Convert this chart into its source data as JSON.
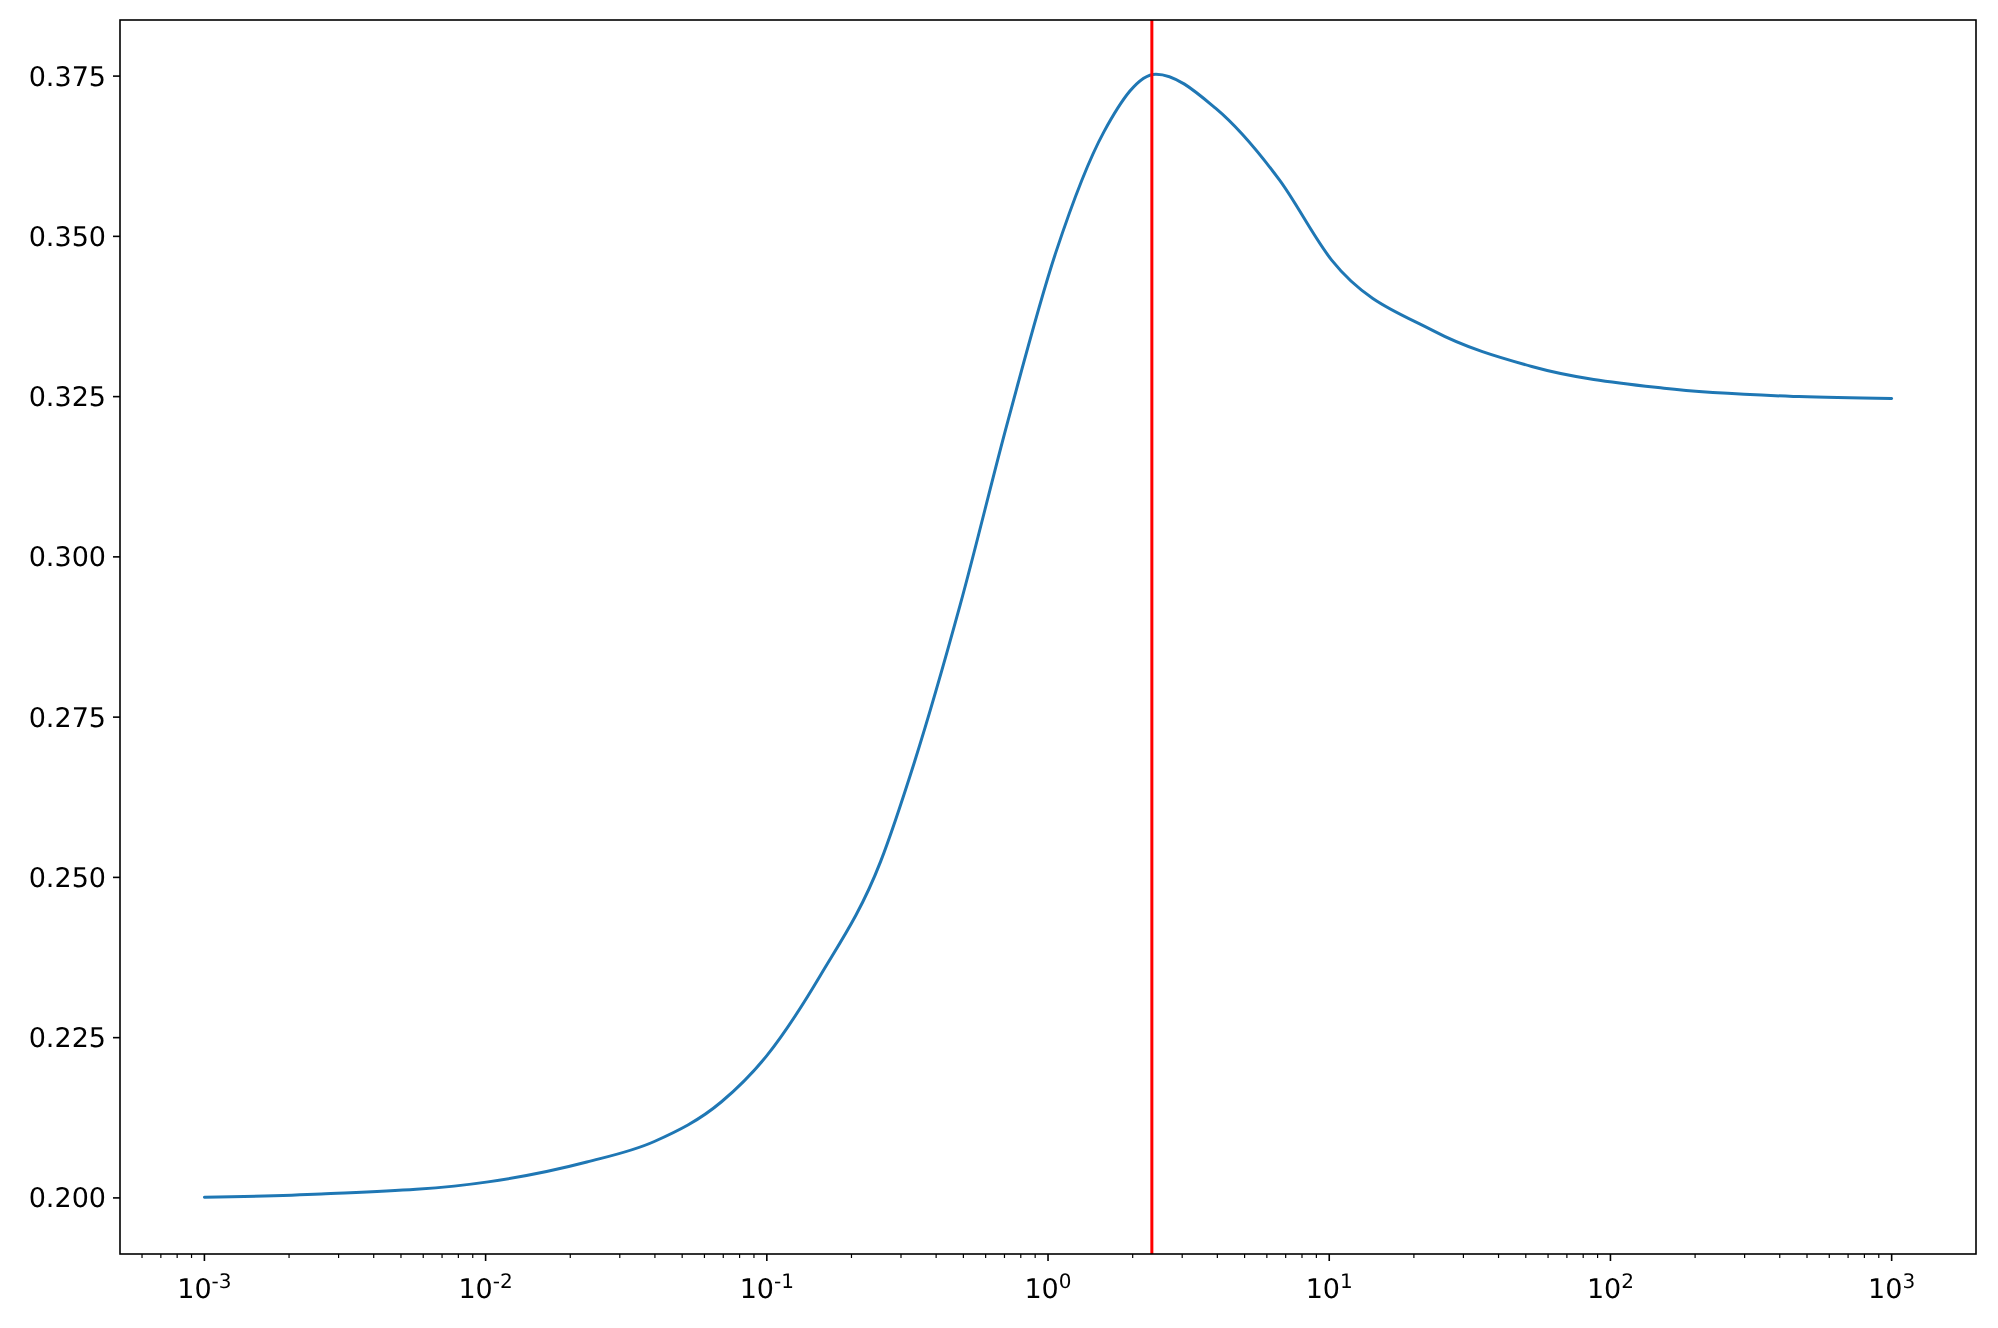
{
  "chart_data": {
    "type": "line",
    "log": "x",
    "grid": false,
    "marker": "none",
    "line_style": "solid",
    "xlim": [
      0.000501,
      1995
    ],
    "ylim": [
      0.19125,
      0.38375
    ],
    "xticks": [
      {
        "value": 0.001,
        "label": "10$^{-3}$"
      },
      {
        "value": 0.01,
        "label": "10$^{-2}$"
      },
      {
        "value": 0.1,
        "label": "10$^{-1}$"
      },
      {
        "value": 1,
        "label": "10$^{0}$"
      },
      {
        "value": 10,
        "label": "10$^{1}$"
      },
      {
        "value": 100,
        "label": "10$^{2}$"
      },
      {
        "value": 1000,
        "label": "10$^{3}$"
      },
      {
        "value": 0.0006,
        "label": null
      },
      {
        "value": 0.0007,
        "label": null
      },
      {
        "value": 0.0008,
        "label": null
      },
      {
        "value": 0.0009,
        "label": null
      },
      {
        "value": 0.002,
        "label": null
      },
      {
        "value": 0.003,
        "label": null
      },
      {
        "value": 0.004,
        "label": null
      },
      {
        "value": 0.005,
        "label": null
      },
      {
        "value": 0.006,
        "label": null
      },
      {
        "value": 0.007,
        "label": null
      },
      {
        "value": 0.008,
        "label": null
      },
      {
        "value": 0.009,
        "label": null
      },
      {
        "value": 0.02,
        "label": null
      },
      {
        "value": 0.03,
        "label": null
      },
      {
        "value": 0.04,
        "label": null
      },
      {
        "value": 0.05,
        "label": null
      },
      {
        "value": 0.06,
        "label": null
      },
      {
        "value": 0.07,
        "label": null
      },
      {
        "value": 0.08,
        "label": null
      },
      {
        "value": 0.09,
        "label": null
      },
      {
        "value": 0.2,
        "label": null
      },
      {
        "value": 0.3,
        "label": null
      },
      {
        "value": 0.4,
        "label": null
      },
      {
        "value": 0.5,
        "label": null
      },
      {
        "value": 0.6,
        "label": null
      },
      {
        "value": 0.7,
        "label": null
      },
      {
        "value": 0.8,
        "label": null
      },
      {
        "value": 0.9,
        "label": null
      },
      {
        "value": 2,
        "label": null
      },
      {
        "value": 3,
        "label": null
      },
      {
        "value": 4,
        "label": null
      },
      {
        "value": 5,
        "label": null
      },
      {
        "value": 6,
        "label": null
      },
      {
        "value": 7,
        "label": null
      },
      {
        "value": 8,
        "label": null
      },
      {
        "value": 9,
        "label": null
      },
      {
        "value": 20,
        "label": null
      },
      {
        "value": 30,
        "label": null
      },
      {
        "value": 40,
        "label": null
      },
      {
        "value": 50,
        "label": null
      },
      {
        "value": 60,
        "label": null
      },
      {
        "value": 70,
        "label": null
      },
      {
        "value": 80,
        "label": null
      },
      {
        "value": 90,
        "label": null
      },
      {
        "value": 200,
        "label": null
      },
      {
        "value": 300,
        "label": null
      },
      {
        "value": 400,
        "label": null
      },
      {
        "value": 500,
        "label": null
      },
      {
        "value": 600,
        "label": null
      },
      {
        "value": 700,
        "label": null
      },
      {
        "value": 800,
        "label": null
      },
      {
        "value": 900,
        "label": null
      }
    ],
    "yticks": [
      {
        "value": 0.2,
        "label": "0.200"
      },
      {
        "value": 0.225,
        "label": "0.225"
      },
      {
        "value": 0.25,
        "label": "0.250"
      },
      {
        "value": 0.275,
        "label": "0.275"
      },
      {
        "value": 0.3,
        "label": "0.300"
      },
      {
        "value": 0.325,
        "label": "0.325"
      },
      {
        "value": 0.35,
        "label": "0.350"
      },
      {
        "value": 0.375,
        "label": "0.375"
      }
    ],
    "ref_lines": [
      {
        "axis": "x",
        "value": 2.34,
        "color": "#ff0000"
      }
    ],
    "series": [
      {
        "color": "#1f77b4",
        "x": [
          0.001,
          0.0026,
          0.0102,
          0.0229,
          0.0398,
          0.069,
          0.1,
          0.155,
          0.254,
          0.335,
          0.487,
          0.721,
          1.066,
          1.58,
          2.42,
          3.94,
          6.65,
          10.2,
          23.4,
          52.5,
          155,
          468,
          1000
        ],
        "values": [
          0.2001,
          0.2006,
          0.2025,
          0.2056,
          0.2088,
          0.215,
          0.2222,
          0.2347,
          0.2525,
          0.268,
          0.2925,
          0.3213,
          0.3475,
          0.3663,
          0.3753,
          0.37,
          0.3588,
          0.3463,
          0.3353,
          0.3297,
          0.3263,
          0.325,
          0.3247
        ]
      }
    ]
  }
}
